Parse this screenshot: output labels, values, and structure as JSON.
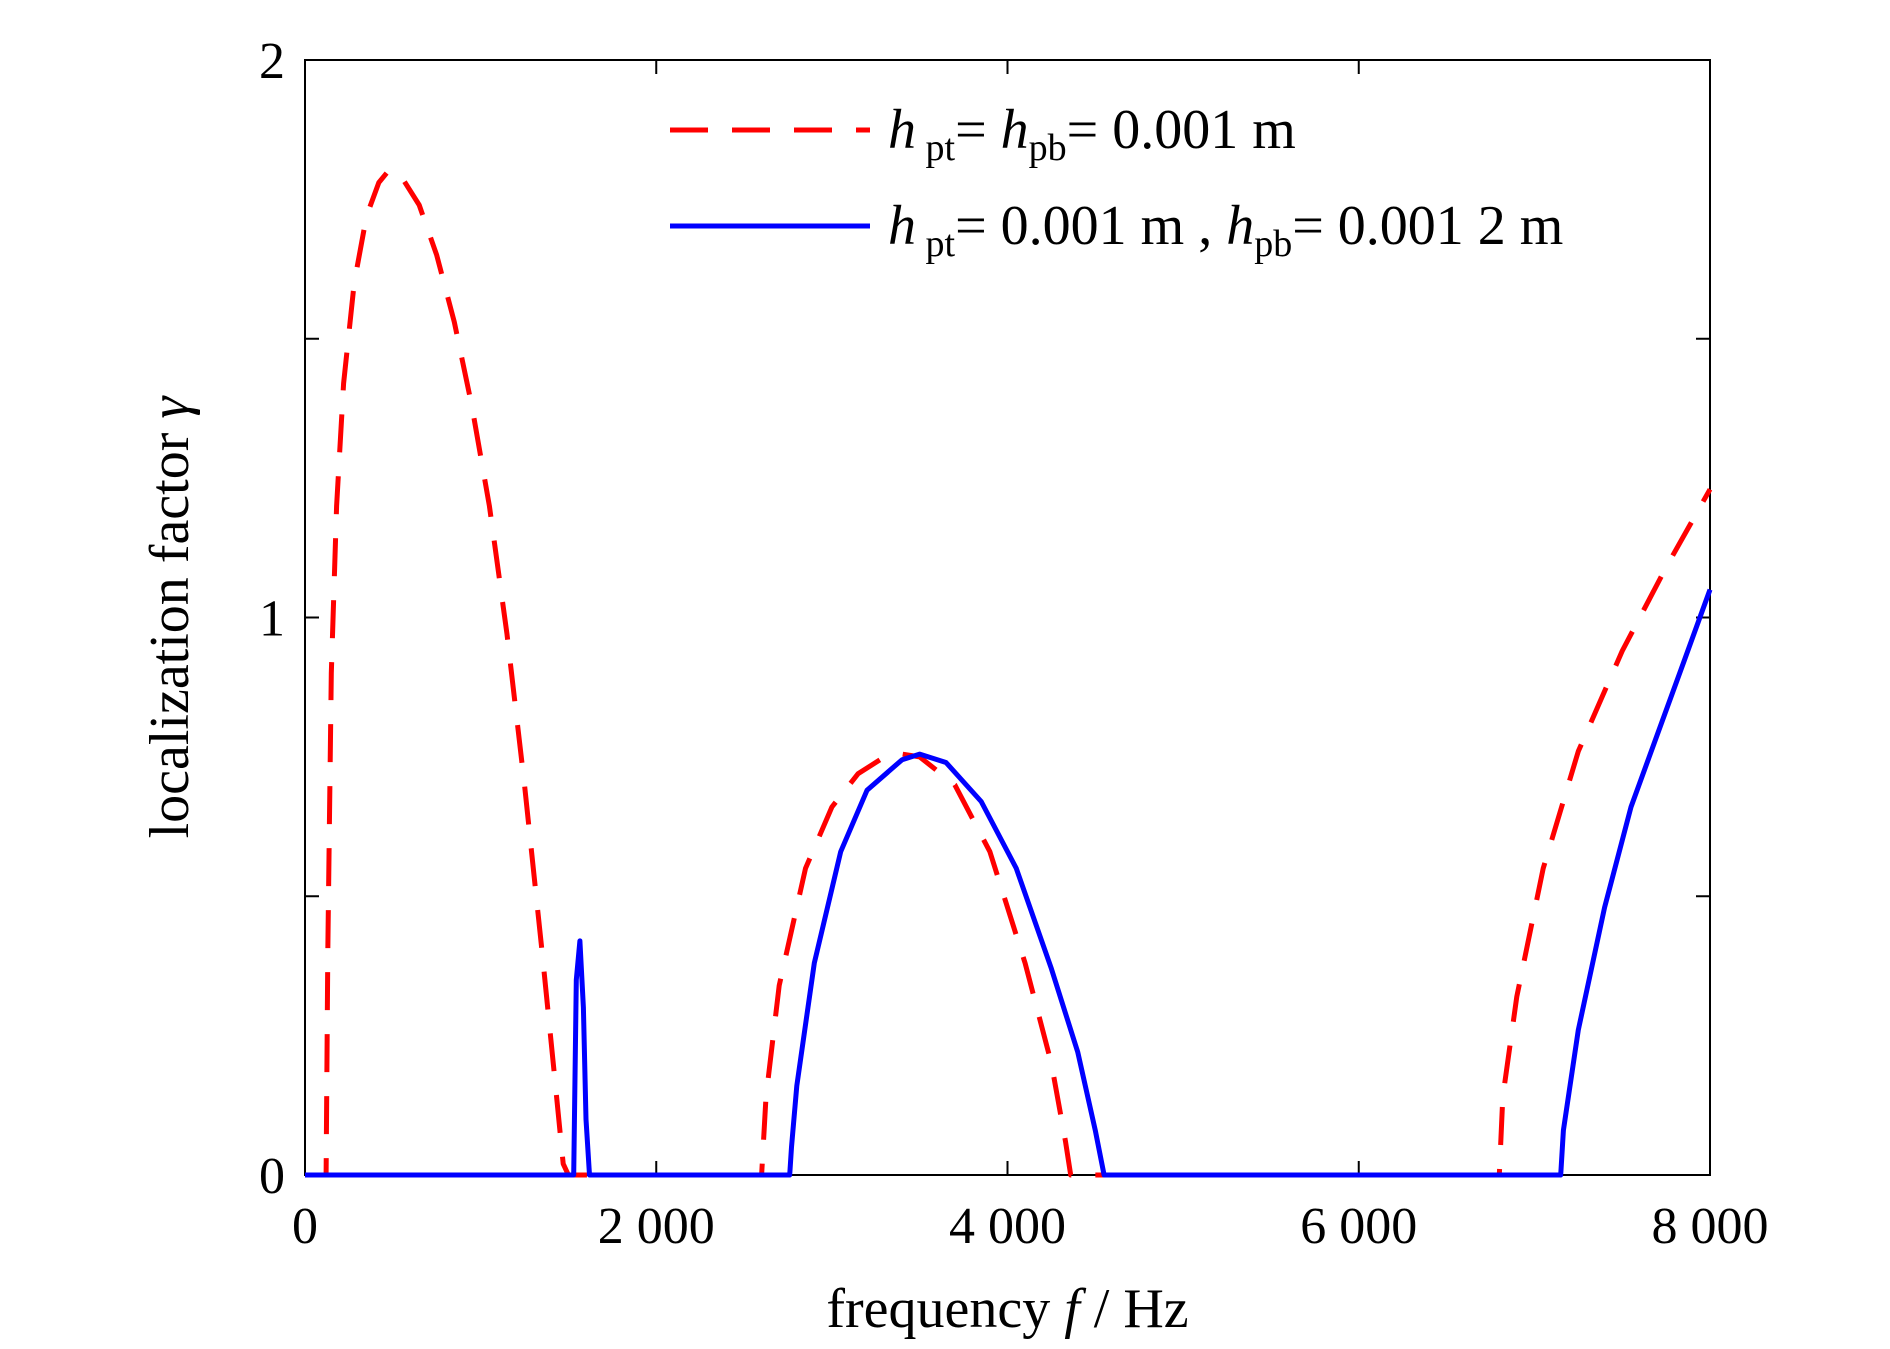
{
  "chart_data": {
    "type": "line",
    "title": "",
    "xlabel": {
      "prefix": "frequency ",
      "var": "f",
      "suffix": " / Hz"
    },
    "ylabel": {
      "prefix": "localization factor ",
      "var": "γ"
    },
    "xlim": [
      0,
      8000
    ],
    "ylim": [
      0,
      2
    ],
    "x_ticks": [
      0,
      2000,
      4000,
      6000,
      8000
    ],
    "x_tick_labels": [
      "0",
      "2 000",
      "4 000",
      "6 000",
      "8 000"
    ],
    "y_ticks": [
      0,
      1,
      2
    ],
    "y_tick_labels": [
      "0",
      "1",
      "2"
    ],
    "y_minor_ticks": [
      0.5,
      1.5
    ],
    "grid": false,
    "legend_position": "top-right",
    "legend": [
      {
        "series": 0,
        "parts": [
          {
            "t": "h",
            "style": "ital"
          },
          {
            "t": " pt",
            "style": "sub"
          },
          {
            "t": "= ",
            "style": "normal"
          },
          {
            "t": "h",
            "style": "ital"
          },
          {
            "t": "pb",
            "style": "sub"
          },
          {
            "t": "= 0.001 m",
            "style": "normal"
          }
        ]
      },
      {
        "series": 1,
        "parts": [
          {
            "t": "h",
            "style": "ital"
          },
          {
            "t": " pt",
            "style": "sub"
          },
          {
            "t": "= 0.001 m , ",
            "style": "normal"
          },
          {
            "t": "h",
            "style": "ital"
          },
          {
            "t": "pb",
            "style": "sub"
          },
          {
            "t": "= 0.001 2 m",
            "style": "normal"
          }
        ]
      }
    ],
    "series": [
      {
        "color": "#ff0000",
        "line_style": "dashed",
        "points": [
          [
            0,
            0
          ],
          [
            120,
            0
          ],
          [
            130,
            0.4
          ],
          [
            150,
            0.9
          ],
          [
            180,
            1.2
          ],
          [
            220,
            1.42
          ],
          [
            280,
            1.6
          ],
          [
            350,
            1.72
          ],
          [
            420,
            1.78
          ],
          [
            480,
            1.803
          ],
          [
            550,
            1.79
          ],
          [
            650,
            1.74
          ],
          [
            750,
            1.65
          ],
          [
            850,
            1.53
          ],
          [
            950,
            1.38
          ],
          [
            1050,
            1.2
          ],
          [
            1150,
            0.97
          ],
          [
            1250,
            0.7
          ],
          [
            1350,
            0.4
          ],
          [
            1420,
            0.18
          ],
          [
            1470,
            0.02
          ],
          [
            1500,
            0
          ],
          [
            2600,
            0
          ],
          [
            2625,
            0.14
          ],
          [
            2700,
            0.34
          ],
          [
            2850,
            0.55
          ],
          [
            3000,
            0.66
          ],
          [
            3150,
            0.72
          ],
          [
            3300,
            0.75
          ],
          [
            3400,
            0.755
          ],
          [
            3500,
            0.75
          ],
          [
            3700,
            0.7
          ],
          [
            3900,
            0.58
          ],
          [
            4100,
            0.38
          ],
          [
            4250,
            0.2
          ],
          [
            4330,
            0.06
          ],
          [
            4360,
            0
          ],
          [
            6800,
            0
          ],
          [
            6820,
            0.14
          ],
          [
            6900,
            0.32
          ],
          [
            7050,
            0.55
          ],
          [
            7250,
            0.76
          ],
          [
            7500,
            0.94
          ],
          [
            7750,
            1.09
          ],
          [
            8000,
            1.23
          ]
        ]
      },
      {
        "color": "#0000ff",
        "line_style": "solid",
        "points": [
          [
            0,
            0
          ],
          [
            1530,
            0
          ],
          [
            1545,
            0.35
          ],
          [
            1565,
            0.42
          ],
          [
            1585,
            0.3
          ],
          [
            1600,
            0.1
          ],
          [
            1620,
            0
          ],
          [
            2760,
            0
          ],
          [
            2770,
            0.05
          ],
          [
            2800,
            0.16
          ],
          [
            2900,
            0.38
          ],
          [
            3050,
            0.58
          ],
          [
            3200,
            0.69
          ],
          [
            3400,
            0.745
          ],
          [
            3500,
            0.755
          ],
          [
            3650,
            0.74
          ],
          [
            3850,
            0.67
          ],
          [
            4050,
            0.55
          ],
          [
            4250,
            0.37
          ],
          [
            4400,
            0.22
          ],
          [
            4500,
            0.08
          ],
          [
            4550,
            0
          ],
          [
            7150,
            0
          ],
          [
            7165,
            0.08
          ],
          [
            7250,
            0.26
          ],
          [
            7400,
            0.48
          ],
          [
            7550,
            0.66
          ],
          [
            7700,
            0.79
          ],
          [
            7850,
            0.92
          ],
          [
            8000,
            1.05
          ]
        ]
      }
    ]
  }
}
